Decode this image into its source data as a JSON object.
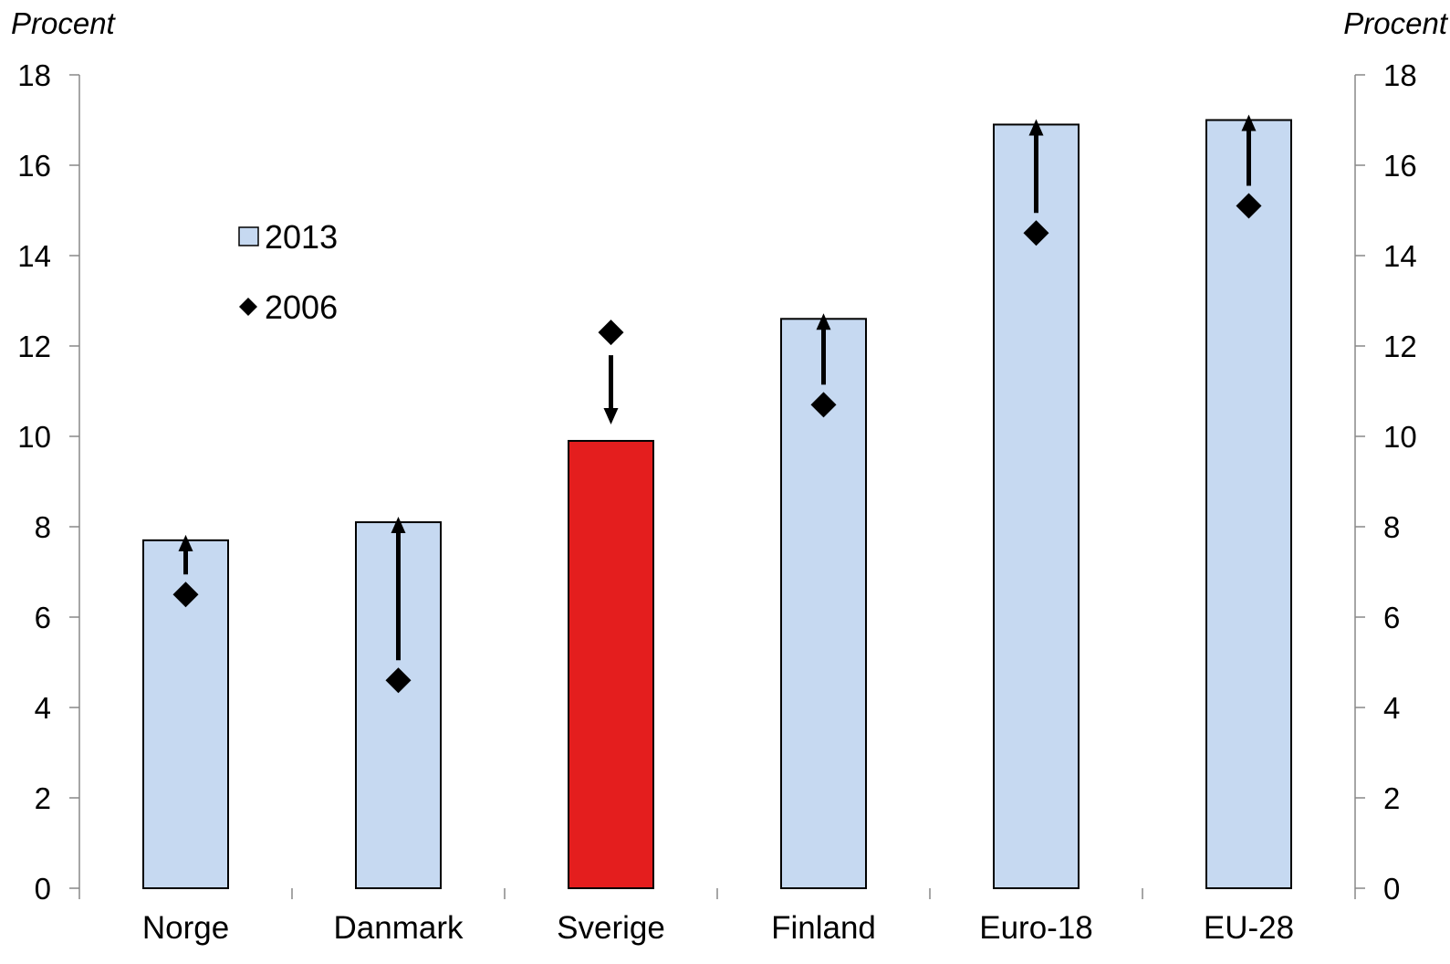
{
  "chart_data": {
    "type": "bar",
    "left_axis_unit": "Procent",
    "right_axis_unit": "Procent",
    "categories": [
      "Norge",
      "Danmark",
      "Sverige",
      "Finland",
      "Euro-18",
      "EU-28"
    ],
    "series": [
      {
        "name": "2013",
        "kind": "bar",
        "values": [
          7.7,
          8.1,
          9.9,
          12.6,
          16.9,
          17.0
        ]
      },
      {
        "name": "2006",
        "kind": "marker",
        "marker": "diamond",
        "values": [
          6.5,
          4.6,
          12.3,
          10.7,
          14.5,
          15.1
        ]
      }
    ],
    "change_arrows": [
      "up",
      "up",
      "down",
      "up",
      "up",
      "up"
    ],
    "ylim": [
      0,
      18
    ],
    "yticks": [
      0,
      2,
      4,
      6,
      8,
      10,
      12,
      14,
      16,
      18
    ],
    "legend": {
      "position": "upper-left",
      "items": [
        "2013",
        "2006"
      ]
    },
    "grid": false,
    "colors": {
      "bar": "#c6d9f1",
      "bar_highlight": "#e41e1e",
      "bar_outline": "#000000",
      "marker": "#000000",
      "axis": "#888888"
    },
    "highlight_category": "Sverige"
  }
}
